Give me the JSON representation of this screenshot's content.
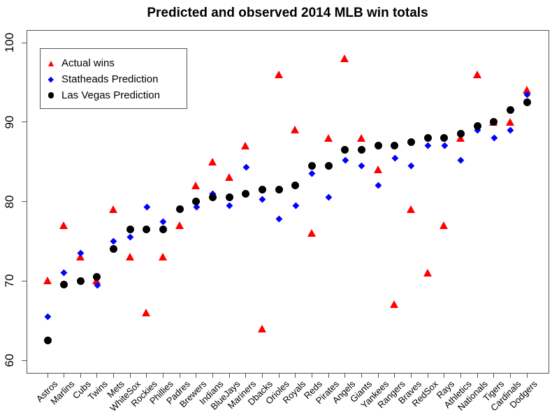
{
  "title": "Predicted and observed 2014 MLB win totals",
  "legend": {
    "items": [
      {
        "label": "Actual wins"
      },
      {
        "label": "Statheads Prediction"
      },
      {
        "label": "Las Vegas Prediction"
      }
    ]
  },
  "chart_data": {
    "type": "scatter",
    "title": "Predicted and observed 2014 MLB win totals",
    "xlabel": "",
    "ylabel": "",
    "ylim": [
      60,
      100
    ],
    "yticks": [
      60,
      70,
      80,
      90,
      100
    ],
    "grid": false,
    "legend_position": "top-left",
    "categories": [
      "Astros",
      "Marlins",
      "Cubs",
      "Twins",
      "Mets",
      "WhiteSox",
      "Rockies",
      "Phillies",
      "Padres",
      "Brewers",
      "Indians",
      "BlueJays",
      "Mariners",
      "Dbacks",
      "Orioles",
      "Royals",
      "Reds",
      "Pirates",
      "Angels",
      "Giants",
      "Yankees",
      "Rangers",
      "Braves",
      "RedSox",
      "Rays",
      "Athletics",
      "Nationals",
      "Tigers",
      "Cardinals",
      "Dodgers"
    ],
    "series": [
      {
        "name": "Actual wins",
        "marker": "triangle",
        "color": "#ff0000",
        "values": [
          70,
          77,
          73,
          70,
          79,
          73,
          66,
          73,
          77,
          82,
          85,
          83,
          87,
          64,
          96,
          89,
          76,
          88,
          98,
          88,
          84,
          67,
          79,
          71,
          77,
          88,
          96,
          90,
          90,
          94
        ]
      },
      {
        "name": "Statheads Prediction",
        "marker": "diamond",
        "color": "#0000ff",
        "values": [
          65.5,
          71,
          73.5,
          69.5,
          75,
          75.5,
          79.3,
          77.5,
          79,
          79.3,
          81,
          79.5,
          84.3,
          80.3,
          77.8,
          79.5,
          83.5,
          80.5,
          85.2,
          84.5,
          82,
          85.5,
          84.5,
          87,
          87,
          85.2,
          89,
          88,
          89,
          93.5
        ]
      },
      {
        "name": "Las Vegas Prediction",
        "marker": "circle",
        "color": "#000000",
        "values": [
          62.5,
          69.5,
          70,
          70.5,
          74,
          76.5,
          76.5,
          76.5,
          79,
          80,
          80.5,
          80.5,
          81,
          81.5,
          81.5,
          82,
          84.5,
          84.5,
          86.5,
          86.5,
          87,
          87,
          87.5,
          88,
          88,
          88.5,
          89.5,
          90,
          91.5,
          92.5
        ]
      }
    ]
  }
}
